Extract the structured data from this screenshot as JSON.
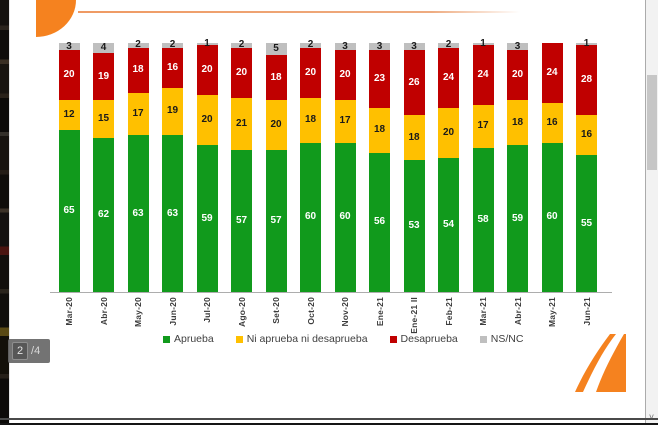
{
  "viewer": {
    "page_indicator": {
      "current": "2",
      "separator": "/",
      "total": "4"
    }
  },
  "slide": {
    "accent_color": "#F5821F"
  },
  "chart_data": {
    "type": "bar",
    "stacked": true,
    "title": "",
    "xlabel": "",
    "ylabel": "",
    "ylim": [
      0,
      100
    ],
    "grid": false,
    "legend_position": "bottom",
    "categories": [
      "Mar-20",
      "Abr-20",
      "May-20",
      "Jun-20",
      "Jul-20",
      "Ago-20",
      "Set-20",
      "Oct-20",
      "Nov-20",
      "Ene-21",
      "Ene-21 II",
      "Feb-21",
      "Mar-21",
      "Abr-21",
      "May-21",
      "Jun-21"
    ],
    "series": [
      {
        "name": "Aprueba",
        "color": "#119A1C",
        "label_color": "#ffffff",
        "values": [
          65,
          62,
          63,
          63,
          59,
          57,
          57,
          60,
          60,
          56,
          53,
          54,
          58,
          59,
          60,
          55
        ]
      },
      {
        "name": "Ni aprueba ni desaprueba",
        "color": "#FFC000",
        "label_color": "#1a1a1a",
        "values": [
          12,
          15,
          17,
          19,
          20,
          21,
          20,
          18,
          17,
          18,
          18,
          20,
          17,
          18,
          16,
          16
        ]
      },
      {
        "name": "Desaprueba",
        "color": "#C00000",
        "label_color": "#ffffff",
        "values": [
          20,
          19,
          18,
          16,
          20,
          20,
          18,
          20,
          20,
          23,
          26,
          24,
          24,
          20,
          24,
          28
        ]
      },
      {
        "name": "NS/NC",
        "color": "#BFBFBF",
        "label_color": "#1a1a1a",
        "values": [
          3,
          4,
          2,
          2,
          1,
          2,
          5,
          2,
          3,
          3,
          3,
          2,
          1,
          3,
          0,
          1
        ]
      }
    ]
  }
}
